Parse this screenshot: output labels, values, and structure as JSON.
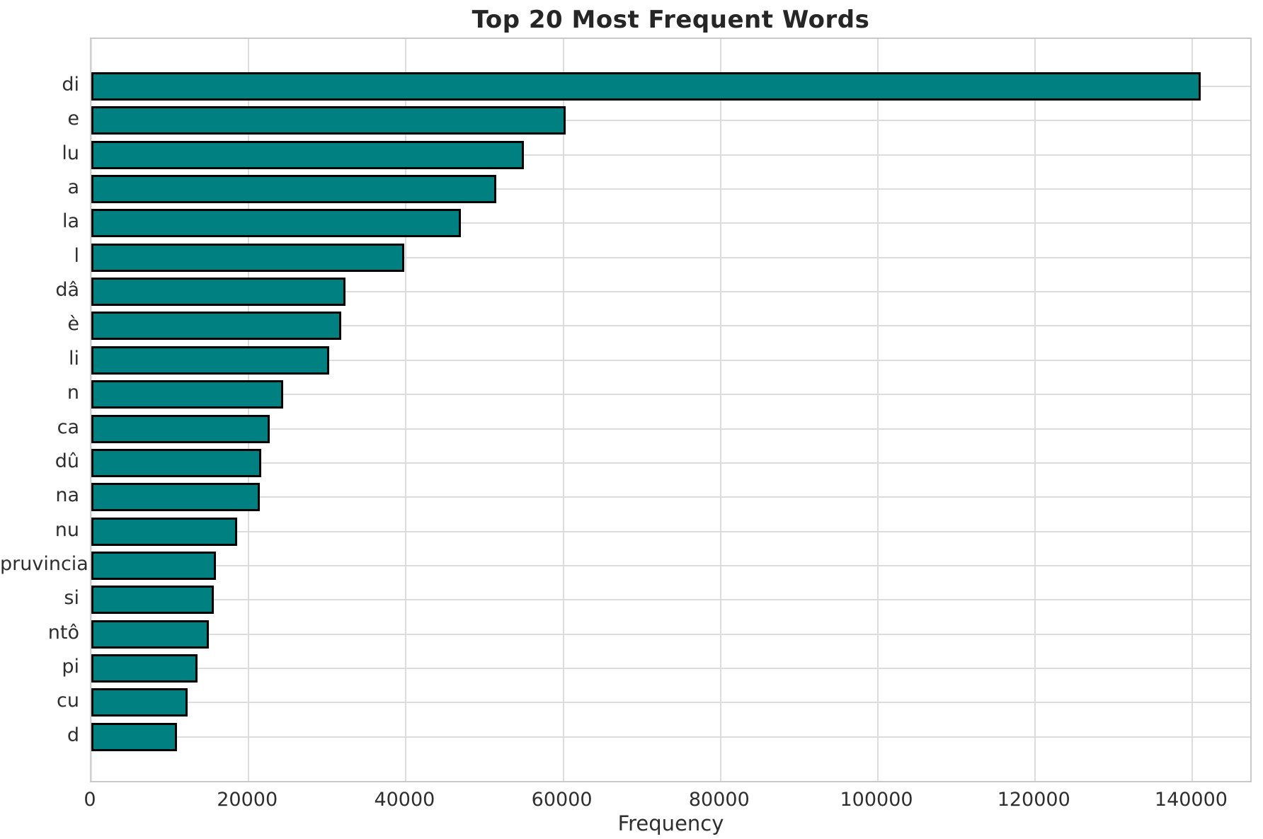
{
  "title": "Top 20 Most Frequent Words",
  "axis": {
    "xlabel": "Frequency",
    "ylabel": ""
  },
  "chart_data": {
    "type": "bar",
    "orientation": "horizontal",
    "title": "Top 20 Most Frequent Words",
    "xlabel": "Frequency",
    "ylabel": "",
    "categories": [
      "di",
      "e",
      "lu",
      "a",
      "la",
      "l",
      "dâ",
      "è",
      "li",
      "n",
      "ca",
      "dû",
      "na",
      "nu",
      "pruvincia",
      "si",
      "ntô",
      "pi",
      "cu",
      "d"
    ],
    "values": [
      141000,
      60300,
      55000,
      51500,
      47000,
      39800,
      32300,
      31800,
      30200,
      24400,
      22700,
      21600,
      21400,
      18500,
      15800,
      15600,
      14900,
      13500,
      12200,
      10900
    ],
    "xlim": [
      0,
      147700
    ],
    "xticks": [
      0,
      20000,
      40000,
      60000,
      80000,
      100000,
      120000,
      140000
    ],
    "xtick_labels": [
      "0",
      "20000",
      "40000",
      "60000",
      "80000",
      "100000",
      "120000",
      "140000"
    ],
    "grid": true,
    "grid_axes": "both",
    "legend_position": "none",
    "colors": {
      "bar_fill": "#008080",
      "bar_edge": "#000000",
      "grid": "#dcdcdc",
      "spine": "#c9c9c9",
      "title_text": "#262626",
      "tick_text": "#2e2e2e",
      "background": "#ffffff"
    }
  }
}
